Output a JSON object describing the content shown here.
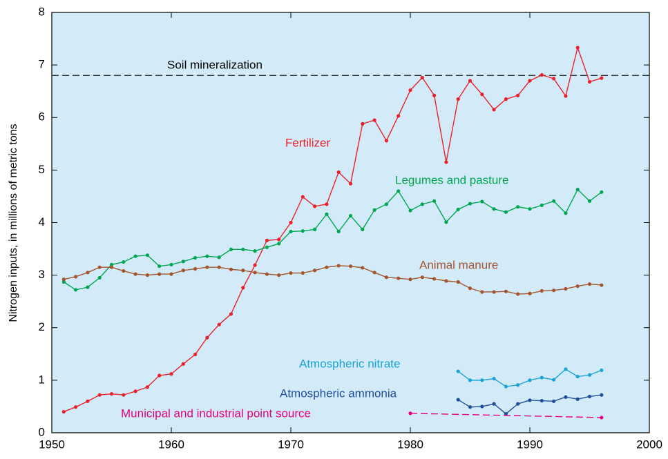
{
  "chart_data": {
    "type": "line",
    "ylabel": "Nitrogen inputs, in millions of metric tons",
    "xlim": [
      1950,
      2000
    ],
    "xticks": [
      1950,
      1960,
      1970,
      1980,
      1990,
      2000
    ],
    "ylim": [
      0,
      8
    ],
    "yticks": [
      0,
      1,
      2,
      3,
      4,
      5,
      6,
      7,
      8
    ],
    "background": "#d3ebf8",
    "series": [
      {
        "name": "Soil mineralization",
        "color": "#333333",
        "dashed": true,
        "markers": false,
        "x": [
          1950,
          2000
        ],
        "values": [
          6.8,
          6.8
        ]
      },
      {
        "name": "Fertilizer",
        "color": "#e8202a",
        "dashed": false,
        "markers": true,
        "x": [
          1951,
          1952,
          1953,
          1954,
          1955,
          1956,
          1957,
          1958,
          1959,
          1960,
          1961,
          1962,
          1963,
          1964,
          1965,
          1966,
          1967,
          1968,
          1969,
          1970,
          1971,
          1972,
          1973,
          1974,
          1975,
          1976,
          1977,
          1978,
          1979,
          1980,
          1981,
          1982,
          1983,
          1984,
          1985,
          1986,
          1987,
          1988,
          1989,
          1990,
          1991,
          1992,
          1993,
          1994,
          1995,
          1996
        ],
        "values": [
          0.4,
          0.49,
          0.6,
          0.72,
          0.74,
          0.72,
          0.79,
          0.87,
          1.09,
          1.12,
          1.31,
          1.49,
          1.81,
          2.06,
          2.26,
          2.76,
          3.19,
          3.66,
          3.68,
          4.0,
          4.49,
          4.31,
          4.35,
          4.96,
          4.74,
          5.88,
          5.95,
          5.56,
          6.03,
          6.52,
          6.76,
          6.42,
          5.15,
          6.35,
          6.7,
          6.44,
          6.15,
          6.35,
          6.42,
          6.7,
          6.81,
          6.74,
          6.41,
          7.33,
          6.68,
          6.75
        ]
      },
      {
        "name": "Legumes and pasture",
        "color": "#00a651",
        "dashed": false,
        "markers": true,
        "x": [
          1951,
          1952,
          1953,
          1954,
          1955,
          1956,
          1957,
          1958,
          1959,
          1960,
          1961,
          1962,
          1963,
          1964,
          1965,
          1966,
          1967,
          1968,
          1969,
          1970,
          1971,
          1972,
          1973,
          1974,
          1975,
          1976,
          1977,
          1978,
          1979,
          1980,
          1981,
          1982,
          1983,
          1984,
          1985,
          1986,
          1987,
          1988,
          1989,
          1990,
          1991,
          1992,
          1993,
          1994,
          1995,
          1996
        ],
        "values": [
          2.87,
          2.72,
          2.77,
          2.95,
          3.2,
          3.25,
          3.36,
          3.38,
          3.17,
          3.2,
          3.26,
          3.33,
          3.36,
          3.34,
          3.49,
          3.49,
          3.46,
          3.53,
          3.6,
          3.83,
          3.84,
          3.87,
          4.16,
          3.83,
          4.13,
          3.87,
          4.24,
          4.35,
          4.6,
          4.23,
          4.35,
          4.41,
          4.01,
          4.25,
          4.36,
          4.4,
          4.26,
          4.2,
          4.3,
          4.26,
          4.33,
          4.41,
          4.18,
          4.63,
          4.41,
          4.58
        ]
      },
      {
        "name": "Animal manure",
        "color": "#a5542e",
        "dashed": false,
        "markers": true,
        "x": [
          1951,
          1952,
          1953,
          1954,
          1955,
          1956,
          1957,
          1958,
          1959,
          1960,
          1961,
          1962,
          1963,
          1964,
          1965,
          1966,
          1967,
          1968,
          1969,
          1970,
          1971,
          1972,
          1973,
          1974,
          1975,
          1976,
          1977,
          1978,
          1979,
          1980,
          1981,
          1982,
          1983,
          1984,
          1985,
          1986,
          1987,
          1988,
          1989,
          1990,
          1991,
          1992,
          1993,
          1994,
          1995,
          1996
        ],
        "values": [
          2.92,
          2.97,
          3.05,
          3.15,
          3.15,
          3.08,
          3.02,
          3.0,
          3.02,
          3.02,
          3.09,
          3.12,
          3.15,
          3.15,
          3.11,
          3.09,
          3.05,
          3.02,
          3.0,
          3.04,
          3.04,
          3.09,
          3.15,
          3.18,
          3.17,
          3.14,
          3.05,
          2.96,
          2.94,
          2.92,
          2.96,
          2.93,
          2.89,
          2.87,
          2.75,
          2.68,
          2.68,
          2.69,
          2.64,
          2.65,
          2.7,
          2.71,
          2.74,
          2.79,
          2.83,
          2.81
        ]
      },
      {
        "name": "Atmospheric nitrate",
        "color": "#1ba3d6",
        "dashed": false,
        "markers": true,
        "x": [
          1984,
          1985,
          1986,
          1987,
          1988,
          1989,
          1990,
          1991,
          1992,
          1993,
          1994,
          1995,
          1996
        ],
        "values": [
          1.17,
          1.0,
          1.0,
          1.03,
          0.88,
          0.91,
          1.0,
          1.05,
          1.01,
          1.21,
          1.07,
          1.1,
          1.19
        ]
      },
      {
        "name": "Atmospheric ammonia",
        "color": "#1f4e9c",
        "dashed": false,
        "markers": true,
        "x": [
          1984,
          1985,
          1986,
          1987,
          1988,
          1989,
          1990,
          1991,
          1992,
          1993,
          1994,
          1995,
          1996
        ],
        "values": [
          0.63,
          0.49,
          0.5,
          0.55,
          0.36,
          0.55,
          0.62,
          0.61,
          0.6,
          0.68,
          0.64,
          0.69,
          0.72
        ]
      },
      {
        "name": "Municipal and industrial point source",
        "color": "#e6007e",
        "dashed": true,
        "markers": true,
        "x": [
          1980,
          1996
        ],
        "values": [
          0.37,
          0.29
        ]
      }
    ]
  }
}
